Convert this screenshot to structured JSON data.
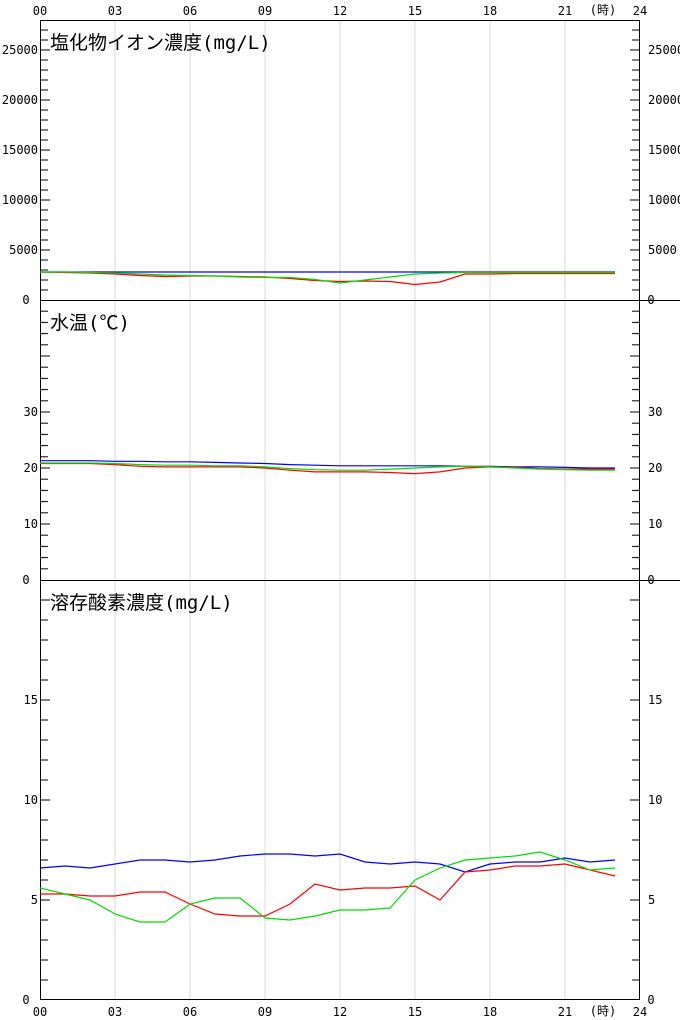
{
  "x_axis": {
    "ticks": [
      "00",
      "03",
      "06",
      "09",
      "12",
      "15",
      "18",
      "21",
      "24"
    ],
    "unit_label": "(時)"
  },
  "chart_data": [
    {
      "type": "line",
      "title": "塩化物イオン濃度(mg/L)",
      "ylim": [
        0,
        28000
      ],
      "yticks": [
        5000,
        10000,
        15000,
        20000,
        25000
      ],
      "ytick_labels": [
        "5000",
        "10000",
        "15000",
        "20000",
        "25000"
      ],
      "zero_label": "0",
      "series": [
        {
          "color": "#0000ff",
          "x": [
            0,
            23
          ],
          "y": [
            2800,
            2800
          ]
        },
        {
          "color": "#ff0000",
          "x": [
            0,
            1,
            2,
            3,
            4,
            5,
            6,
            7,
            8,
            9,
            10,
            11,
            12,
            13,
            14,
            15,
            16,
            17,
            18,
            19,
            20,
            21,
            22,
            23
          ],
          "y": [
            2800,
            2750,
            2700,
            2600,
            2450,
            2350,
            2400,
            2400,
            2350,
            2300,
            2150,
            1950,
            1850,
            1900,
            1850,
            1550,
            1800,
            2600,
            2600,
            2650,
            2650,
            2650,
            2650,
            2650
          ]
        },
        {
          "color": "#00dd00",
          "x": [
            0,
            1,
            2,
            3,
            4,
            5,
            6,
            7,
            8,
            9,
            10,
            11,
            12,
            13,
            14,
            15,
            16,
            17,
            18,
            19,
            20,
            21,
            22,
            23
          ],
          "y": [
            2800,
            2800,
            2750,
            2700,
            2600,
            2500,
            2450,
            2400,
            2300,
            2250,
            2250,
            2050,
            1700,
            2000,
            2300,
            2600,
            2700,
            2750,
            2750,
            2750,
            2750,
            2750,
            2750,
            2750
          ]
        }
      ]
    },
    {
      "type": "line",
      "title": "水温(℃)",
      "ylim": [
        0,
        50
      ],
      "yticks": [
        10,
        20,
        30
      ],
      "ytick_labels": [
        "10",
        "20",
        "30"
      ],
      "zero_label": "0",
      "series": [
        {
          "color": "#0000ff",
          "x": [
            0,
            1,
            2,
            3,
            4,
            5,
            6,
            7,
            8,
            9,
            10,
            11,
            12,
            13,
            14,
            15,
            16,
            17,
            18,
            19,
            20,
            21,
            22,
            23
          ],
          "y": [
            21.3,
            21.3,
            21.3,
            21.2,
            21.2,
            21.1,
            21.1,
            21.0,
            20.9,
            20.8,
            20.6,
            20.5,
            20.4,
            20.4,
            20.4,
            20.4,
            20.4,
            20.3,
            20.3,
            20.2,
            20.2,
            20.1,
            20.0,
            20.0
          ]
        },
        {
          "color": "#ff0000",
          "x": [
            0,
            1,
            2,
            3,
            4,
            5,
            6,
            7,
            8,
            9,
            10,
            11,
            12,
            13,
            14,
            15,
            16,
            17,
            18,
            19,
            20,
            21,
            22,
            23
          ],
          "y": [
            20.8,
            20.8,
            20.8,
            20.6,
            20.3,
            20.2,
            20.2,
            20.2,
            20.2,
            20.0,
            19.6,
            19.3,
            19.3,
            19.3,
            19.2,
            19.0,
            19.3,
            20.0,
            20.2,
            20.1,
            19.9,
            19.8,
            19.8,
            19.8
          ]
        },
        {
          "color": "#00dd00",
          "x": [
            0,
            1,
            2,
            3,
            4,
            5,
            6,
            7,
            8,
            9,
            10,
            11,
            12,
            13,
            14,
            15,
            16,
            17,
            18,
            19,
            20,
            21,
            22,
            23
          ],
          "y": [
            20.9,
            20.9,
            20.9,
            20.8,
            20.6,
            20.5,
            20.5,
            20.4,
            20.4,
            20.2,
            19.9,
            19.7,
            19.6,
            19.6,
            19.8,
            20.0,
            20.2,
            20.3,
            20.2,
            20.0,
            19.8,
            19.7,
            19.6,
            19.6
          ]
        }
      ]
    },
    {
      "type": "line",
      "title": "溶存酸素濃度(mg/L)",
      "ylim": [
        0,
        21
      ],
      "yticks": [
        5,
        10,
        15
      ],
      "ytick_labels": [
        "5",
        "10",
        "15"
      ],
      "zero_label": "0",
      "series": [
        {
          "color": "#0000ff",
          "x": [
            0,
            1,
            2,
            3,
            4,
            5,
            6,
            7,
            8,
            9,
            10,
            11,
            12,
            13,
            14,
            15,
            16,
            17,
            18,
            19,
            20,
            21,
            22,
            23
          ],
          "y": [
            6.6,
            6.7,
            6.6,
            6.8,
            7.0,
            7.0,
            6.9,
            7.0,
            7.2,
            7.3,
            7.3,
            7.2,
            7.3,
            6.9,
            6.8,
            6.9,
            6.8,
            6.4,
            6.8,
            6.9,
            6.9,
            7.1,
            6.9,
            7.0
          ]
        },
        {
          "color": "#ff0000",
          "x": [
            0,
            1,
            2,
            3,
            4,
            5,
            6,
            7,
            8,
            9,
            10,
            11,
            12,
            13,
            14,
            15,
            16,
            17,
            18,
            19,
            20,
            21,
            22,
            23
          ],
          "y": [
            5.3,
            5.3,
            5.2,
            5.2,
            5.4,
            5.4,
            4.8,
            4.3,
            4.2,
            4.2,
            4.8,
            5.8,
            5.5,
            5.6,
            5.6,
            5.7,
            5.0,
            6.4,
            6.5,
            6.7,
            6.7,
            6.8,
            6.5,
            6.2
          ]
        },
        {
          "color": "#00dd00",
          "x": [
            0,
            1,
            2,
            3,
            4,
            5,
            6,
            7,
            8,
            9,
            10,
            11,
            12,
            13,
            14,
            15,
            16,
            17,
            18,
            19,
            20,
            21,
            22,
            23
          ],
          "y": [
            5.6,
            5.3,
            5.0,
            4.3,
            3.9,
            3.9,
            4.8,
            5.1,
            5.1,
            4.1,
            4.0,
            4.2,
            4.5,
            4.5,
            4.6,
            6.0,
            6.6,
            7.0,
            7.1,
            7.2,
            7.4,
            7.0,
            6.5,
            6.6
          ]
        }
      ]
    }
  ]
}
